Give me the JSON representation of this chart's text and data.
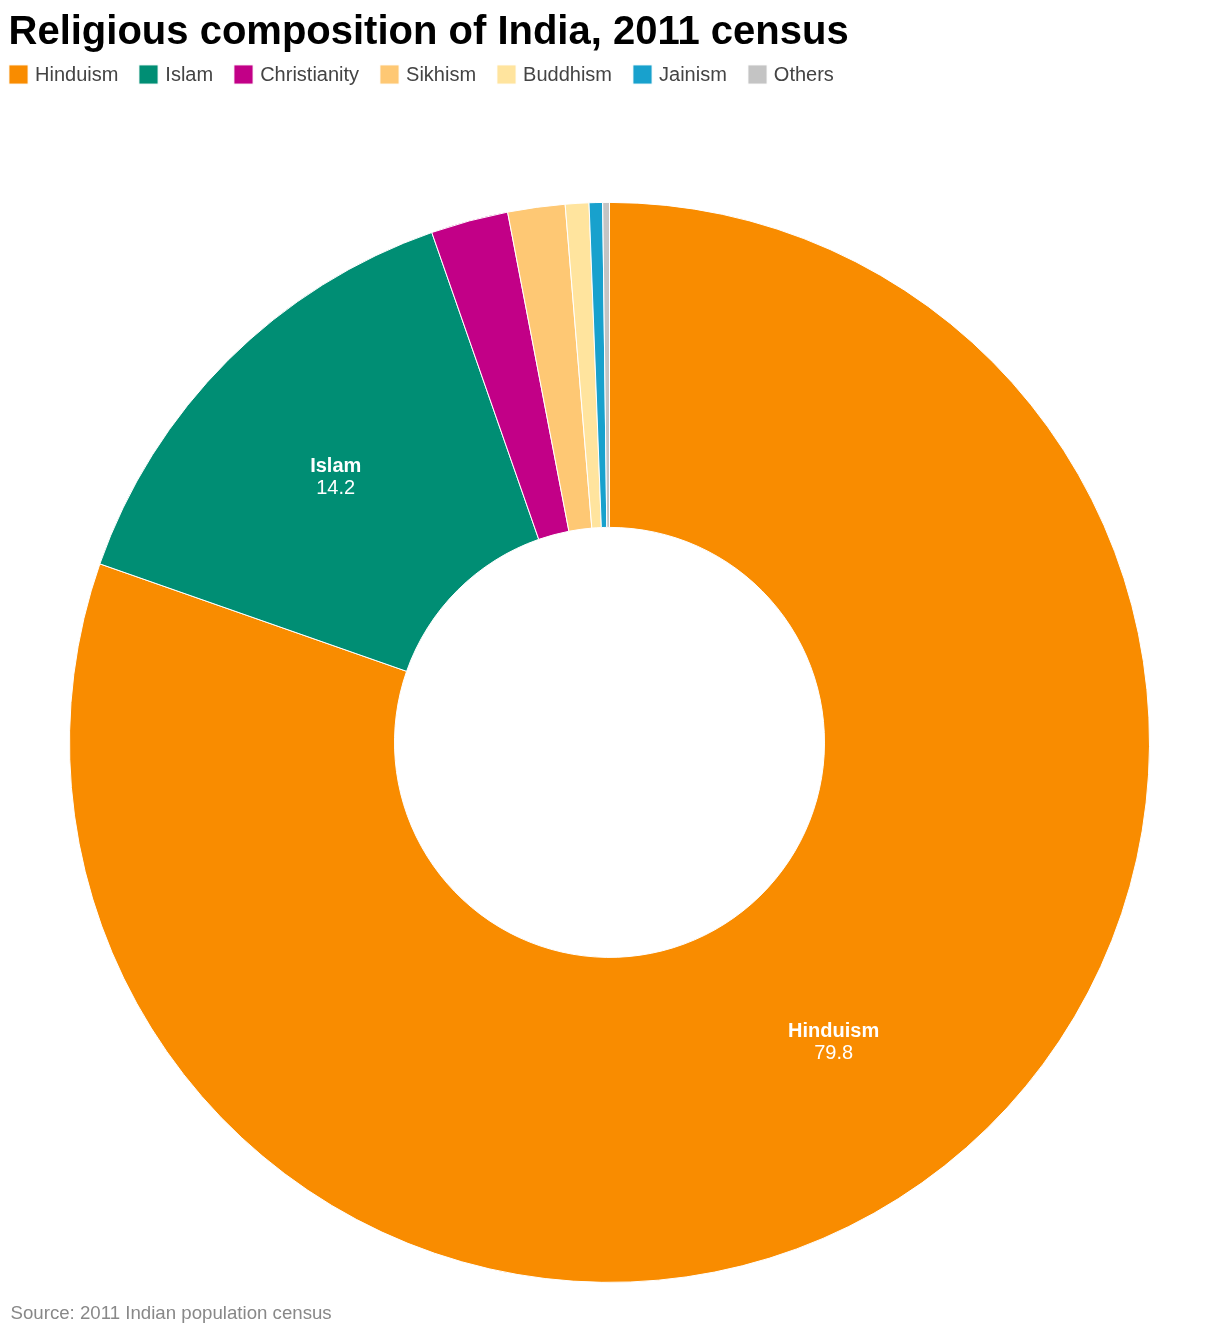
{
  "chart_data": {
    "type": "donut",
    "title": "Religious composition of India, 2011 census",
    "categories": [
      "Hinduism",
      "Islam",
      "Christianity",
      "Sikhism",
      "Buddhism",
      "Jainism",
      "Others"
    ],
    "values": [
      79.8,
      14.2,
      2.3,
      1.7,
      0.7,
      0.4,
      0.2
    ],
    "colors": [
      "#f98c00",
      "#008e74",
      "#c20087",
      "#fec874",
      "#ffe49e",
      "#18a1cd",
      "#c4c4c4"
    ],
    "value_labels": [
      "79.8",
      "14.2",
      null,
      null,
      null,
      null,
      null
    ],
    "legend": "top left",
    "annotations": [
      "Source: 2011 Indian population census"
    ]
  }
}
